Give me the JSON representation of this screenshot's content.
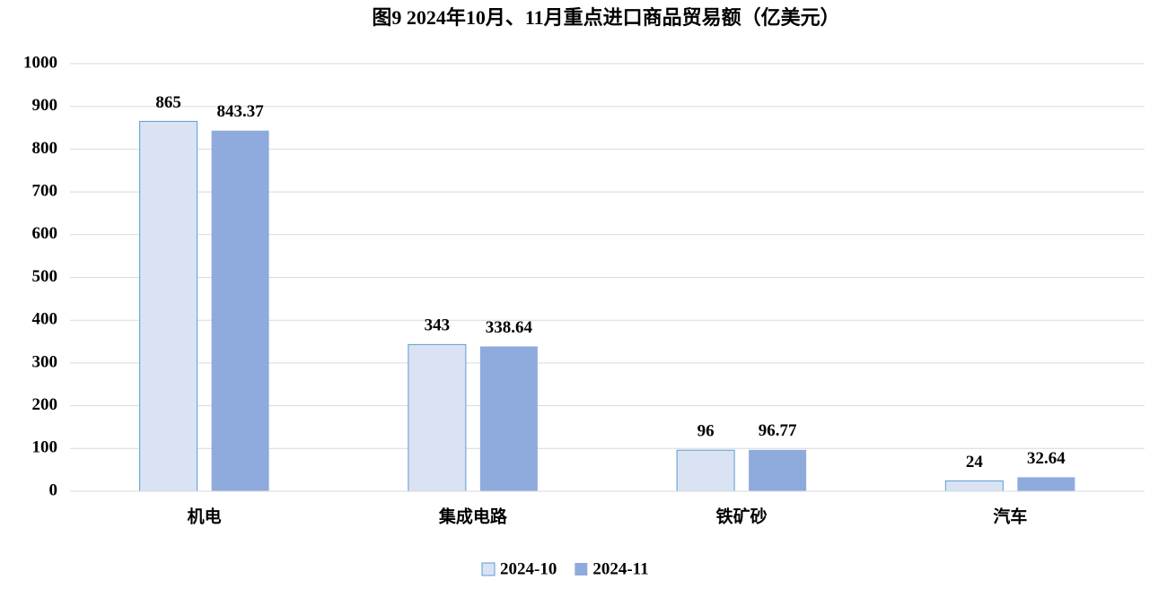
{
  "chart_data": {
    "type": "bar",
    "title": "图9 2024年10月、11月重点进口商品贸易额（亿美元）",
    "categories": [
      "机电",
      "集成电路",
      "铁矿砂",
      "汽车"
    ],
    "series": [
      {
        "name": "2024-10",
        "color": "#dae3f3",
        "values": [
          865,
          343,
          96,
          24
        ]
      },
      {
        "name": "2024-11",
        "color": "#8faadc",
        "values": [
          843.37,
          338.64,
          96.77,
          32.64
        ]
      }
    ],
    "ylim": [
      0,
      1000
    ],
    "yticks": [
      0,
      100,
      200,
      300,
      400,
      500,
      600,
      700,
      800,
      900,
      1000
    ],
    "grid": true,
    "legend": "bottom"
  }
}
